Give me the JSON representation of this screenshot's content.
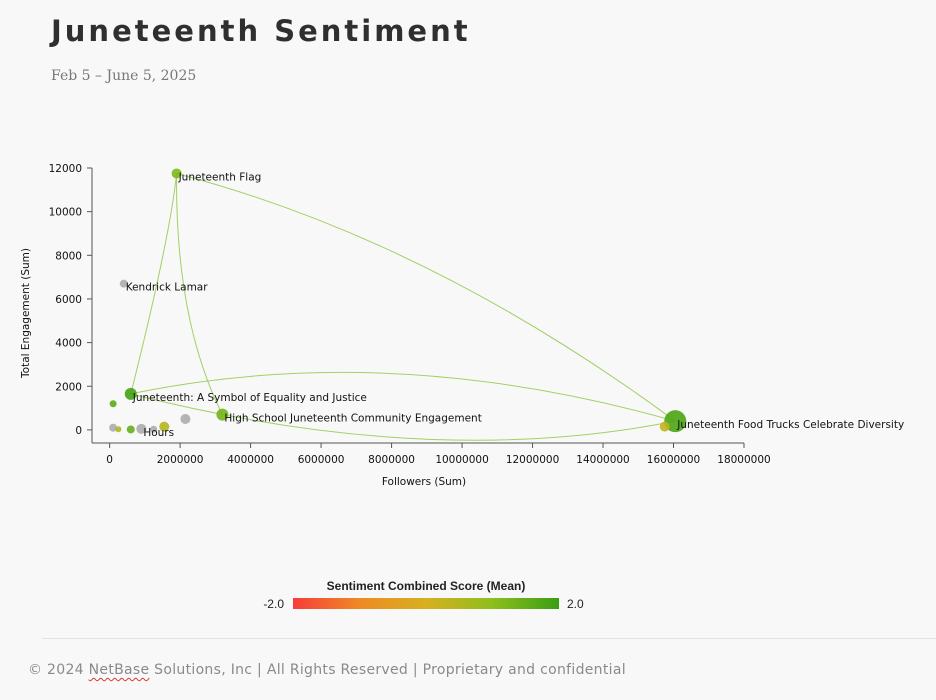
{
  "header": {
    "title": "Juneteenth Sentiment",
    "date_range": "Feb 5 – June 5, 2025"
  },
  "chart_data": {
    "type": "scatter",
    "xlabel": "Followers (Sum)",
    "ylabel": "Total Engagement (Sum)",
    "xlim": [
      -500000,
      18000000
    ],
    "ylim": [
      -600,
      12000
    ],
    "x_ticks": [
      0,
      2000000,
      4000000,
      6000000,
      8000000,
      10000000,
      12000000,
      14000000,
      16000000,
      18000000
    ],
    "y_ticks": [
      0,
      2000,
      4000,
      6000,
      8000,
      10000,
      12000
    ],
    "grid": false,
    "color_scale": {
      "title": "Sentiment Combined Score (Mean)",
      "min_label": "-2.0",
      "max_label": "2.0",
      "min": -2.0,
      "max": 2.0,
      "colors": [
        "#f73c3c",
        "#ee8a24",
        "#d7b020",
        "#8ebe1e",
        "#3a9e12"
      ]
    },
    "points": [
      {
        "label": "Juneteenth Flag",
        "x": 1900000,
        "y": 11750,
        "sentiment": 1.2,
        "size": 5
      },
      {
        "label": "Kendrick Lamar",
        "x": 400000,
        "y": 6700,
        "sentiment": 0,
        "neutral": true,
        "size": 4
      },
      {
        "label": "Juneteenth: A Symbol of Equality and Justice",
        "x": 600000,
        "y": 1650,
        "sentiment": 1.9,
        "size": 6
      },
      {
        "label": "High School Juneteenth Community Engagement",
        "x": 3200000,
        "y": 700,
        "sentiment": 1.3,
        "size": 6
      },
      {
        "label": "Juneteenth Food Trucks Celebrate Diversity",
        "x": 16050000,
        "y": 400,
        "sentiment": 1.8,
        "size": 11
      },
      {
        "label": "Hours",
        "x": 900000,
        "y": 50,
        "sentiment": 0,
        "neutral": true,
        "size": 5
      },
      {
        "label": "",
        "x": 100000,
        "y": 1200,
        "sentiment": 1.6,
        "size": 3.5
      },
      {
        "label": "",
        "x": 100000,
        "y": 100,
        "sentiment": 0,
        "neutral": true,
        "size": 4
      },
      {
        "label": "",
        "x": 250000,
        "y": 30,
        "sentiment": 0.6,
        "size": 3
      },
      {
        "label": "",
        "x": 600000,
        "y": 20,
        "sentiment": 1.5,
        "size": 4
      },
      {
        "label": "",
        "x": 1250000,
        "y": 30,
        "sentiment": 0,
        "neutral": true,
        "size": 3.5
      },
      {
        "label": "",
        "x": 1550000,
        "y": 150,
        "sentiment": 0.5,
        "size": 5
      },
      {
        "label": "",
        "x": 2150000,
        "y": 500,
        "sentiment": 0,
        "neutral": true,
        "size": 5
      },
      {
        "label": "",
        "x": 15750000,
        "y": 150,
        "sentiment": 0.3,
        "size": 5
      }
    ],
    "links": [
      {
        "from": "Juneteenth Flag",
        "to": "Juneteenth: A Symbol of Equality and Justice",
        "curve": [
          170,
          238
        ]
      },
      {
        "from": "Juneteenth Flag",
        "to": "High School Juneteenth Community Engagement",
        "curve": [
          175,
          320
        ]
      },
      {
        "from": "Juneteenth Flag",
        "to": "Juneteenth Food Trucks Celebrate Diversity",
        "curve": [
          430,
          240
        ]
      },
      {
        "from": "Juneteenth: A Symbol of Equality and Justice",
        "to": "Juneteenth Food Trucks Celebrate Diversity",
        "curve": [
          390,
          340
        ]
      },
      {
        "from": "Juneteenth: A Symbol of Equality and Justice",
        "to": "Juneteenth Food Trucks Celebrate Diversity",
        "curve": [
          430,
          470
        ]
      }
    ]
  },
  "footer": {
    "prefix": "© 2024 ",
    "brand": "NetBase",
    "suffix": " Solutions, Inc | All Rights Reserved | Proprietary and confidential"
  }
}
